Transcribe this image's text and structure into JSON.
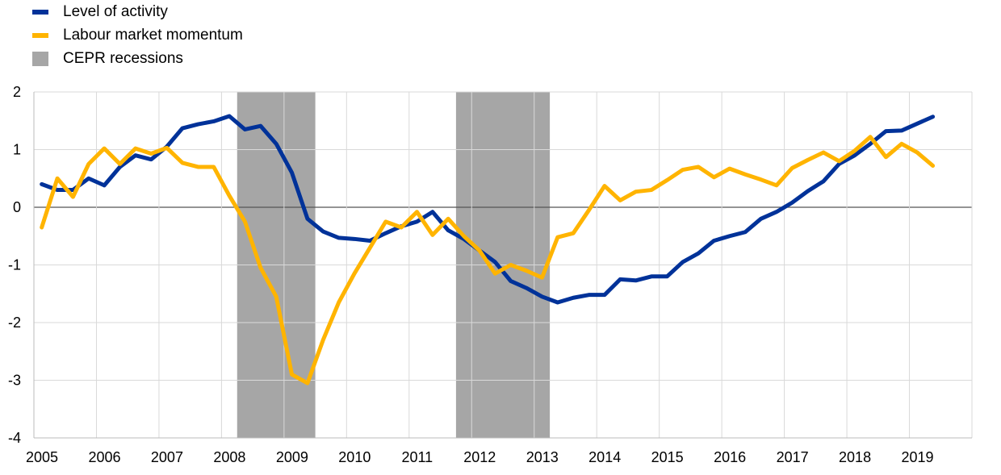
{
  "chart_data": {
    "type": "line",
    "title": "",
    "xlabel": "",
    "ylabel": "",
    "x_start": "2005Q1",
    "x_frequency": "quarterly",
    "xticks": [
      "2005",
      "2006",
      "2007",
      "2008",
      "2009",
      "2010",
      "2011",
      "2012",
      "2013",
      "2014",
      "2015",
      "2016",
      "2017",
      "2018",
      "2019"
    ],
    "xlim": [
      2005,
      2020
    ],
    "yticks": [
      2,
      1,
      0,
      -1,
      -2,
      -3,
      -4
    ],
    "ylim": [
      -4,
      2
    ],
    "grid": true,
    "legend_position": "top-left",
    "series": [
      {
        "name": "Level of activity",
        "color": "#003299",
        "values": [
          0.4,
          0.3,
          0.3,
          0.5,
          0.38,
          0.7,
          0.9,
          0.83,
          1.05,
          1.37,
          1.44,
          1.49,
          1.58,
          1.35,
          1.41,
          1.1,
          0.6,
          -0.2,
          -0.42,
          -0.53,
          -0.55,
          -0.58,
          -0.45,
          -0.33,
          -0.25,
          -0.08,
          -0.4,
          -0.55,
          -0.75,
          -0.95,
          -1.28,
          -1.4,
          -1.55,
          -1.65,
          -1.57,
          -1.52,
          -1.52,
          -1.25,
          -1.27,
          -1.2,
          -1.2,
          -0.95,
          -0.8,
          -0.58,
          -0.5,
          -0.43,
          -0.2,
          -0.08,
          0.08,
          0.28,
          0.45,
          0.75,
          0.9,
          1.1,
          1.32,
          1.33,
          1.45,
          1.57
        ]
      },
      {
        "name": "Labour market momentum",
        "color": "#FFB400",
        "values": [
          -0.35,
          0.5,
          0.18,
          0.75,
          1.02,
          0.75,
          1.02,
          0.93,
          1.03,
          0.77,
          0.7,
          0.7,
          0.2,
          -0.25,
          -1.05,
          -1.55,
          -2.9,
          -3.05,
          -2.3,
          -1.65,
          -1.15,
          -0.7,
          -0.25,
          -0.35,
          -0.08,
          -0.48,
          -0.2,
          -0.5,
          -0.75,
          -1.15,
          -1.0,
          -1.1,
          -1.22,
          -0.52,
          -0.45,
          -0.05,
          0.37,
          0.12,
          0.27,
          0.3,
          0.47,
          0.65,
          0.7,
          0.52,
          0.67,
          0.57,
          0.48,
          0.38,
          0.68,
          0.82,
          0.95,
          0.8,
          0.98,
          1.22,
          0.87,
          1.1,
          0.95,
          0.72
        ]
      }
    ],
    "shaded_regions": {
      "name": "CEPR recessions",
      "color": "#A6A6A6",
      "periods": [
        [
          "2008Q2",
          "2009Q2"
        ],
        [
          "2011Q4",
          "2013Q1"
        ]
      ]
    }
  }
}
